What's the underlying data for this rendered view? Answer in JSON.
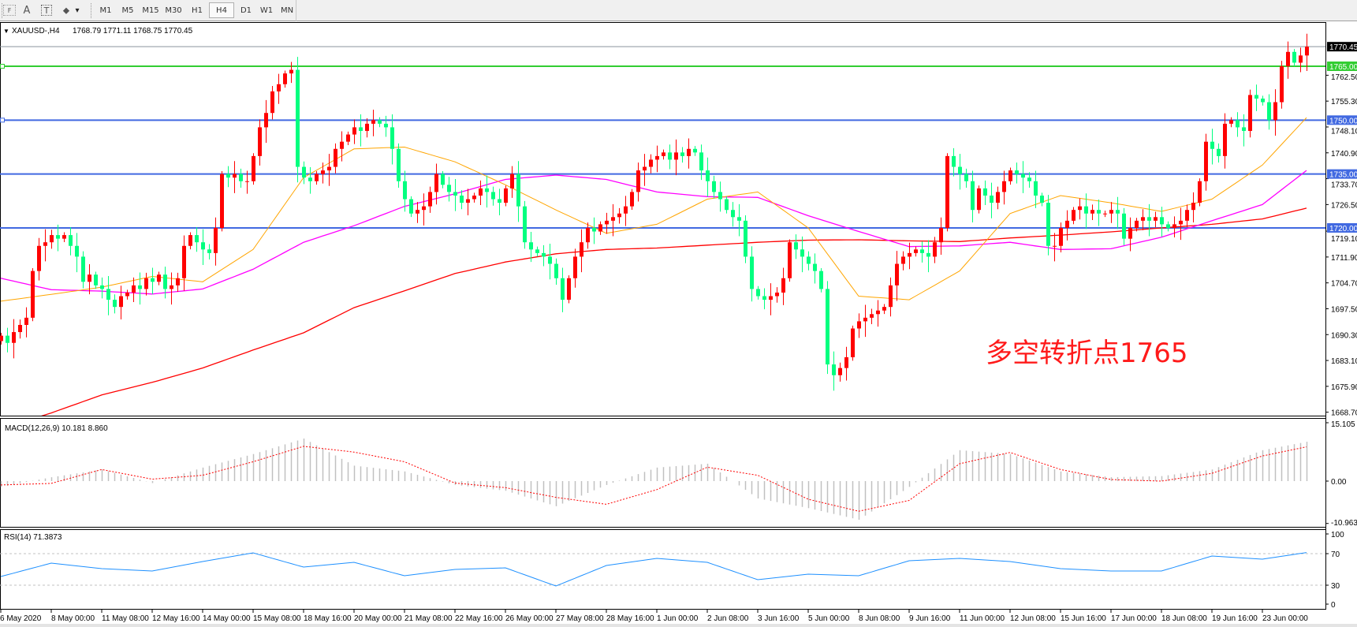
{
  "toolbar": {
    "tools": [
      {
        "icon": "fibonacci-icon",
        "glyph": "F"
      },
      {
        "icon": "text-icon",
        "glyph": "A"
      },
      {
        "icon": "text-label-icon",
        "glyph": "T"
      },
      {
        "icon": "arrows-icon",
        "glyph": "⬥"
      },
      {
        "icon": "chevron-down-icon",
        "glyph": "▾"
      }
    ],
    "timeframes": [
      "M1",
      "M5",
      "M15",
      "M30",
      "H1",
      "H4",
      "D1",
      "W1",
      "MN"
    ],
    "active_timeframe": "H4"
  },
  "chart": {
    "collapse_glyph": "▼",
    "symbol_title": "XAUUSD-,H4",
    "ohlc": "1768.79 1771.11 1768.75 1770.45",
    "annotation": "多空转折点1765",
    "colors": {
      "bull": "#ff0000",
      "bear": "#00ff7f",
      "ma_fast": "#ffa500",
      "ma_mid": "#ff00ff",
      "ma_slow": "#ff0000",
      "rsi": "#1e90ff",
      "macd_hist": "#c0c0c0",
      "macd_signal": "#ff0000"
    }
  },
  "chart_data": [
    {
      "type": "candlestick",
      "symbol": "XAUUSD-",
      "timeframe": "H4",
      "ylim": [
        1668.7,
        1776.0
      ],
      "y_tick_labels": [
        "1762.50",
        "1755.30",
        "1748.10",
        "1740.90",
        "1733.70",
        "1726.50",
        "1719.10",
        "1711.90",
        "1704.70",
        "1697.50",
        "1690.30",
        "1683.10",
        "1675.90",
        "1668.70"
      ],
      "current_price": {
        "label": "1770.45",
        "color": "#000000",
        "line_color": "#8a949e"
      },
      "horizontal_lines": [
        {
          "label": "1765.00",
          "color": "#32cd32"
        },
        {
          "label": "1750.00",
          "color": "#4169e1"
        },
        {
          "label": "1735.00",
          "color": "#4169e1"
        },
        {
          "label": "1720.00",
          "color": "#4169e1"
        }
      ],
      "x_tick_labels": [
        "6 May 2020",
        "8 May 00:00",
        "11 May 08:00",
        "12 May 16:00",
        "14 May 00:00",
        "15 May 08:00",
        "18 May 16:00",
        "20 May 00:00",
        "21 May 08:00",
        "22 May 16:00",
        "26 May 00:00",
        "27 May 08:00",
        "28 May 16:00",
        "1 Jun 00:00",
        "2 Jun 08:00",
        "3 Jun 16:00",
        "5 Jun 00:00",
        "8 Jun 08:00",
        "9 Jun 16:00",
        "11 Jun 00:00",
        "12 Jun 08:00",
        "15 Jun 16:00",
        "17 Jun 00:00",
        "18 Jun 08:00",
        "19 Jun 16:00",
        "23 Jun 00:00"
      ],
      "closes": [
        1690,
        1688,
        1691,
        1693,
        1695,
        1708,
        1715,
        1716,
        1718,
        1717,
        1718,
        1715,
        1712,
        1705,
        1707,
        1704,
        1703,
        1700,
        1698,
        1701,
        1702,
        1704,
        1703,
        1706,
        1705,
        1707,
        1703,
        1704,
        1706,
        1715,
        1718,
        1716,
        1714,
        1713,
        1720,
        1735,
        1734,
        1735,
        1733,
        1733,
        1740,
        1748,
        1752,
        1758,
        1760,
        1763,
        1764,
        1737,
        1734,
        1733,
        1735,
        1736,
        1737,
        1742,
        1744,
        1746,
        1748,
        1747,
        1749,
        1750,
        1749,
        1748,
        1742,
        1733,
        1728,
        1724,
        1725,
        1726,
        1730,
        1735,
        1732,
        1730,
        1729,
        1727,
        1728,
        1729,
        1731,
        1730,
        1728,
        1727,
        1731,
        1735,
        1726,
        1716,
        1714,
        1713,
        1712,
        1710,
        1706,
        1700,
        1706,
        1712,
        1716,
        1720,
        1719,
        1721,
        1722,
        1723,
        1724,
        1726,
        1730,
        1736,
        1737,
        1739,
        1740,
        1741,
        1739,
        1741,
        1740,
        1742,
        1741,
        1736,
        1733,
        1730,
        1728,
        1725,
        1723,
        1722,
        1712,
        1703,
        1701,
        1700,
        1701,
        1702,
        1706,
        1716,
        1714,
        1712,
        1710,
        1708,
        1703,
        1682,
        1679,
        1681,
        1684,
        1692,
        1694,
        1695,
        1696,
        1697,
        1698,
        1704,
        1710,
        1712,
        1713,
        1714,
        1713,
        1712,
        1716,
        1720,
        1740,
        1737,
        1735,
        1733,
        1725,
        1731,
        1729,
        1727,
        1730,
        1733,
        1736,
        1735,
        1734,
        1733,
        1729,
        1727,
        1715,
        1715,
        1720,
        1722,
        1725,
        1726,
        1724,
        1725,
        1724,
        1724,
        1725,
        1724,
        1717,
        1720,
        1722,
        1723,
        1722,
        1723,
        1721,
        1720,
        1721,
        1722,
        1725,
        1727,
        1733,
        1744,
        1742,
        1740,
        1749,
        1750,
        1748,
        1747,
        1757,
        1756,
        1755,
        1750,
        1755,
        1765,
        1769,
        1766,
        1768,
        1770.45
      ],
      "moving_averages": {
        "note_values": "values at each x tick label time, then last bar",
        "fast": {
          "at_labels": [
            1699.6,
            1701.5,
            1703.5,
            1706.5,
            1705,
            1714,
            1734,
            1742,
            1742.5,
            1738.4,
            1732,
            1725,
            1718.5,
            1721,
            1728,
            1730,
            1720,
            1701,
            1700,
            1708,
            1724,
            1729,
            1727,
            1724.6,
            1728,
            1737.5
          ],
          "last": 1750.7
        },
        "mid": {
          "at_labels": [
            1706,
            1702.8,
            1702.4,
            1701.6,
            1703,
            1708.5,
            1716,
            1720.6,
            1726,
            1729.5,
            1733.5,
            1734.7,
            1733.5,
            1730,
            1728.7,
            1728.5,
            1723.4,
            1719,
            1714.8,
            1715,
            1716,
            1714,
            1714.2,
            1717.4,
            1722,
            1726.5
          ],
          "last": 1736
        },
        "slow": {
          "at_labels": [
            1664,
            1668.5,
            1673.5,
            1677,
            1681,
            1686,
            1690.8,
            1697.8,
            1702.5,
            1707.3,
            1710.5,
            1712.8,
            1714,
            1714.4,
            1715.2,
            1716,
            1716.6,
            1716.7,
            1716.4,
            1716.2,
            1717.2,
            1718,
            1718.9,
            1720,
            1721,
            1722.5
          ],
          "last": 1725.5
        }
      }
    },
    {
      "type": "bar",
      "title": "MACD(12,26,9) 10.181 8.860",
      "ylim": [
        -10.963,
        15.105
      ],
      "y_tick_labels": [
        "15.105",
        "0.00",
        "-10.963"
      ],
      "histogram": {
        "at_labels": [
          -1.5,
          1,
          3,
          -0.5,
          3.5,
          7,
          11,
          4,
          2.5,
          -1,
          -2.5,
          -6.5,
          -1,
          3.5,
          4.5,
          -4.5,
          -7,
          -10,
          -1.5,
          8,
          7,
          2.5,
          1,
          1.3,
          3,
          8
        ],
        "last": 10.181
      },
      "signal": {
        "at_labels": [
          -1,
          -0.6,
          3,
          0.5,
          1.5,
          5,
          9,
          7.5,
          5,
          -0.5,
          -1.7,
          -4.2,
          -6,
          -2.2,
          3.6,
          1.5,
          -4.7,
          -7.8,
          -5,
          4.5,
          7.4,
          3,
          0.4,
          0,
          2,
          6.5
        ],
        "last": 8.86
      }
    },
    {
      "type": "line",
      "title": "RSI(14) 71.3873",
      "ylim": [
        0,
        100
      ],
      "y_tick_labels": [
        "100",
        "70",
        "30",
        "0"
      ],
      "levels": [
        70,
        30
      ],
      "values": {
        "at_labels": [
          41,
          58,
          51,
          48,
          60,
          71,
          53,
          59,
          42,
          50,
          52,
          29,
          55,
          64,
          59,
          37,
          44,
          42,
          61,
          64,
          60,
          51,
          48,
          48,
          67,
          63
        ],
        "last": 71.3873
      }
    }
  ]
}
